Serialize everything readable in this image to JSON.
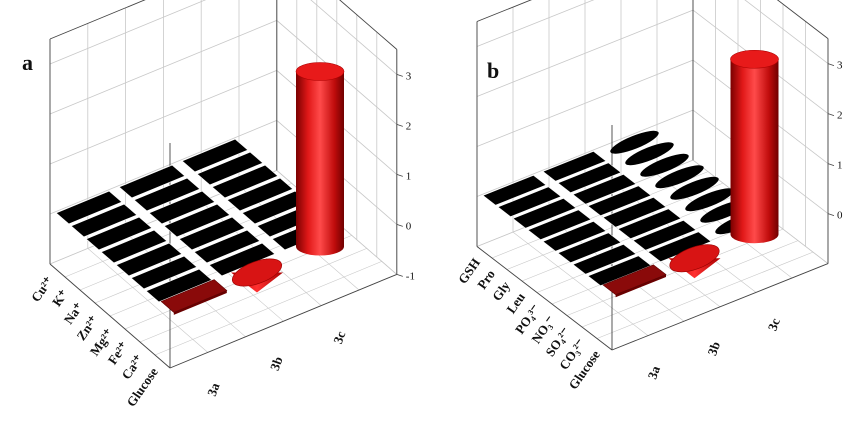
{
  "chart_data": [
    {
      "type": "bar3d",
      "panel": "a",
      "x_categories": [
        "Glucose",
        "Ca²⁺",
        "Fe²⁺",
        "Mg²⁺",
        "Zn²⁺",
        "Na⁺",
        "K⁺",
        "Cu²⁺"
      ],
      "y_categories": [
        "3a",
        "3b",
        "3c"
      ],
      "z_ticks": [
        "-1",
        "0",
        "1",
        "2",
        "3"
      ],
      "zlim": [
        -1,
        3.5
      ],
      "series": [
        {
          "name": "3a",
          "values": [
            0.05,
            0,
            0,
            0,
            0,
            0,
            0,
            0
          ]
        },
        {
          "name": "3b",
          "values": [
            -0.4,
            0,
            0,
            0,
            0,
            0,
            0,
            0
          ]
        },
        {
          "name": "3c",
          "values": [
            3.5,
            0,
            0,
            0,
            0,
            0,
            0,
            0
          ]
        }
      ]
    },
    {
      "type": "bar3d",
      "panel": "b",
      "x_categories": [
        "Glucose",
        "CO₃²⁻",
        "SO₄²⁻",
        "NO₃⁻",
        "PO₄³⁻",
        "Leu",
        "Gly",
        "Pro",
        "GSH"
      ],
      "y_categories": [
        "3a",
        "3b",
        "3c"
      ],
      "z_ticks": [
        "0",
        "1",
        "2",
        "3"
      ],
      "zlim": [
        -1,
        3.5
      ],
      "series": [
        {
          "name": "3a",
          "values": [
            0.05,
            0,
            0,
            0,
            0,
            0,
            0,
            0,
            0
          ]
        },
        {
          "name": "3b",
          "values": [
            -0.4,
            0,
            0,
            0,
            0,
            0,
            0,
            0,
            0
          ]
        },
        {
          "name": "3c",
          "values": [
            3.5,
            0,
            0,
            0,
            0,
            0,
            0,
            0,
            0
          ]
        }
      ]
    }
  ],
  "colors": {
    "highlight": "#d81414",
    "highlight_dark": "#8a0a0a",
    "zero_bar": "#000000",
    "grid": "#c8c8c8",
    "axis": "#444444"
  }
}
